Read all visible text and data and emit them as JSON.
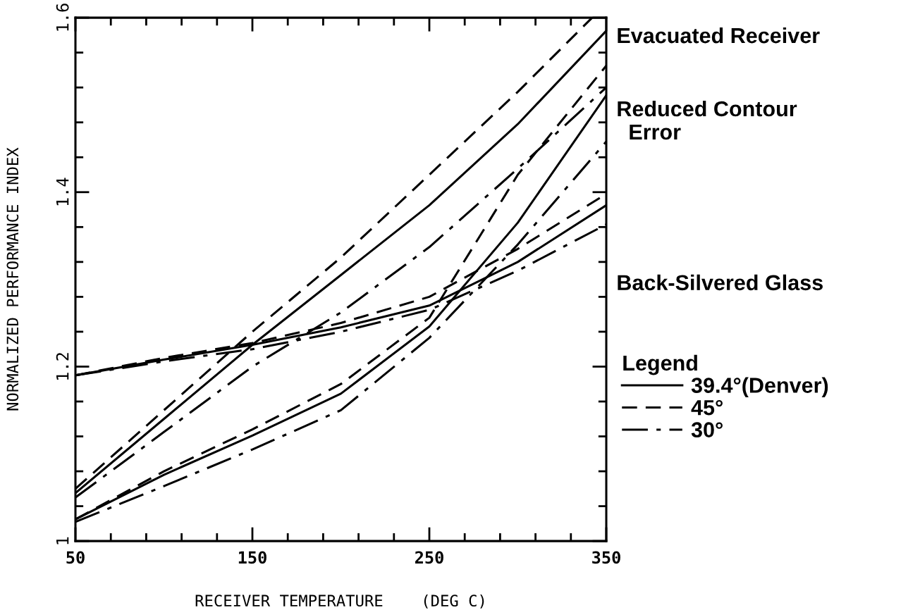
{
  "chart_data": {
    "type": "line",
    "xlabel": "RECEIVER TEMPERATURE    (DEG C)",
    "ylabel": "NORMALIZED PERFORMANCE INDEX",
    "legend_title": "Legend",
    "legend": "right",
    "grid": false,
    "marker": "none",
    "x": [
      50,
      100,
      150,
      200,
      250,
      300,
      350
    ],
    "xlim": [
      50,
      350
    ],
    "xticks": [
      50,
      150,
      250,
      350
    ],
    "ylim": [
      1,
      1.6
    ],
    "yticks": [
      1,
      1.2,
      1.4,
      1.6
    ],
    "series": [
      {
        "name": "39.4°(Denver)",
        "color": "#000000",
        "line_style": "solid",
        "values": [
          1.055,
          1.14,
          1.225,
          1.305,
          1.385,
          1.478,
          1.585
        ]
      },
      {
        "name": "45°",
        "color": "#000000",
        "line_style": "dashed",
        "x": [
          50,
          100,
          150,
          200,
          250,
          300,
          342
        ],
        "values": [
          1.06,
          1.15,
          1.24,
          1.325,
          1.42,
          1.515,
          1.6
        ]
      },
      {
        "name": "30°",
        "color": "#000000",
        "line_style": "dashdot",
        "values": [
          1.05,
          1.125,
          1.2,
          1.262,
          1.337,
          1.427,
          1.52
        ]
      },
      {
        "color": "#000000",
        "line_style": "solid",
        "values": [
          1.19,
          1.208,
          1.225,
          1.245,
          1.27,
          1.32,
          1.385
        ]
      },
      {
        "color": "#000000",
        "line_style": "dashed",
        "values": [
          1.19,
          1.21,
          1.227,
          1.25,
          1.28,
          1.335,
          1.398
        ]
      },
      {
        "color": "#000000",
        "line_style": "dashdot",
        "values": [
          1.19,
          1.206,
          1.22,
          1.24,
          1.265,
          1.31,
          1.363
        ]
      },
      {
        "color": "#000000",
        "line_style": "solid",
        "values": [
          1.025,
          1.076,
          1.121,
          1.169,
          1.246,
          1.365,
          1.511
        ]
      },
      {
        "color": "#000000",
        "line_style": "dashed",
        "values": [
          1.025,
          1.08,
          1.128,
          1.18,
          1.256,
          1.42,
          1.545
        ]
      },
      {
        "color": "#000000",
        "line_style": "dashdot",
        "values": [
          1.022,
          1.063,
          1.105,
          1.15,
          1.233,
          1.34,
          1.458
        ]
      }
    ],
    "annotations": [
      "Evacuated Receiver",
      "Reduced Contour\n  Error",
      "Back-Silvered Glass"
    ]
  }
}
